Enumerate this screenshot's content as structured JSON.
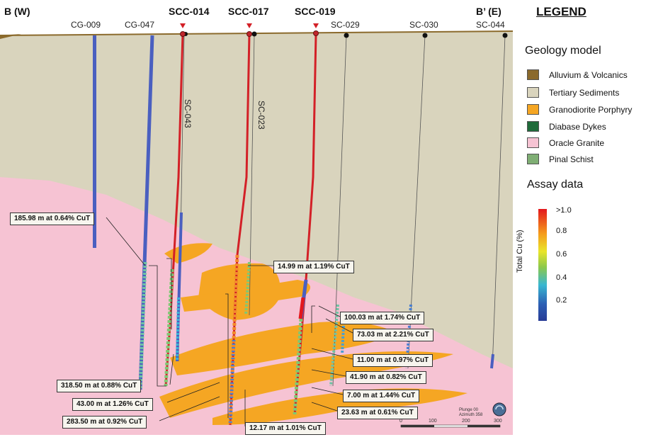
{
  "section": {
    "west_label": "B (W)",
    "east_label": "B’ (E)"
  },
  "holes_top": [
    {
      "id": "CG-009"
    },
    {
      "id": "CG-047"
    },
    {
      "id": "SC-029"
    },
    {
      "id": "SC-030"
    },
    {
      "id": "SC-044"
    }
  ],
  "scc_holes": [
    {
      "id": "SCC-014"
    },
    {
      "id": "SCC-017"
    },
    {
      "id": "SCC-019"
    }
  ],
  "side_labels": [
    {
      "id": "SC-043"
    },
    {
      "id": "SC-023"
    }
  ],
  "intercepts": [
    {
      "text": "185.98 m at 0.64% CuT"
    },
    {
      "text": "14.99 m at 1.19% CuT"
    },
    {
      "text": "100.03 m at 1.74% CuT"
    },
    {
      "text": "73.03 m at 2.21% CuT"
    },
    {
      "text": "11.00 m at 0.97% CuT"
    },
    {
      "text": "41.90 m at 0.82% CuT"
    },
    {
      "text": "7.00 m at 1.44% CuT"
    },
    {
      "text": "23.63 m at 0.61% CuT"
    },
    {
      "text": "12.17 m at 1.01% CuT"
    },
    {
      "text": "318.50 m at 0.88% CuT"
    },
    {
      "text": "43.00 m at 1.26% CuT"
    },
    {
      "text": "283.50 m at 0.92% CuT"
    }
  ],
  "legend": {
    "title": "LEGEND",
    "geology_heading": "Geology model",
    "geology": [
      {
        "label": "Alluvium & Volcanics",
        "color": "#8b6a2c"
      },
      {
        "label": "Tertiary Sediments",
        "color": "#d9d4bd"
      },
      {
        "label": "Granodiorite Porphyry",
        "color": "#f5a623"
      },
      {
        "label": "Diabase Dykes",
        "color": "#1f6b3a"
      },
      {
        "label": "Oracle Granite",
        "color": "#f6c3d3"
      },
      {
        "label": "Pinal Schist",
        "color": "#7fae74"
      }
    ],
    "assay_heading": "Assay data",
    "assay_axis": "Total Cu (%)",
    "assay_ticks": [
      ">1.0",
      "0.8",
      "0.6",
      "0.4",
      "0.2"
    ]
  },
  "scale": {
    "ticks": [
      "0",
      "100",
      "200",
      "300"
    ],
    "plunge": "Plunge 00",
    "azimuth": "Azimuth 358"
  }
}
